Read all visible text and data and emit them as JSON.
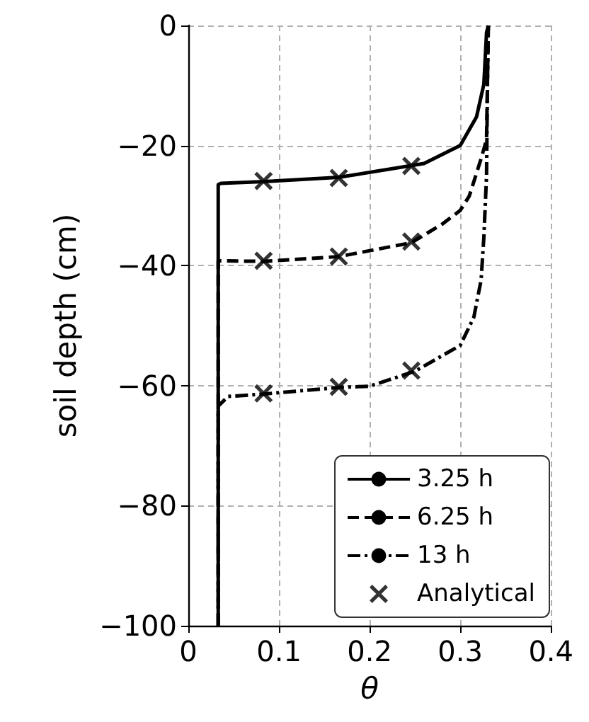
{
  "chart_data": {
    "type": "line",
    "xlabel": "θ",
    "ylabel": "soil depth (cm)",
    "xlim": [
      0,
      0.4
    ],
    "xticks": [
      0,
      0.1,
      0.2,
      0.3,
      0.4
    ],
    "ylim": [
      -100,
      0
    ],
    "yticks": [
      {
        "value": -100,
        "label": "−100"
      },
      {
        "value": -80,
        "label": "−80"
      },
      {
        "value": -60,
        "label": "−60"
      },
      {
        "value": -40,
        "label": "−40"
      },
      {
        "value": -20,
        "label": "−20"
      },
      0
    ],
    "grid": true,
    "legend": "bottom right",
    "marker": "none",
    "series": [
      {
        "name": "3.25 h",
        "color": "#000000",
        "line_style": "solid",
        "x": [
          0.033,
          0.033,
          0.036,
          0.084,
          0.166,
          0.26,
          0.3,
          0.318,
          0.326,
          0.329,
          0.331
        ],
        "values": [
          -100,
          -26.5,
          -26.3,
          -26.0,
          -25.3,
          -23.0,
          -20.0,
          -15.2,
          -9.8,
          -1.2,
          0
        ]
      },
      {
        "name": "6.25 h",
        "color": "#000000",
        "line_style": "dashed",
        "x": [
          0.033,
          0.033,
          0.083,
          0.166,
          0.246,
          0.28,
          0.3,
          0.31,
          0.323,
          0.329,
          0.331
        ],
        "values": [
          -100,
          -39.2,
          -39.3,
          -38.5,
          -36.2,
          -33.1,
          -30.8,
          -28.4,
          -22.2,
          -19.0,
          0
        ]
      },
      {
        "name": "13 h",
        "color": "#000000",
        "line_style": "dashdot",
        "x": [
          0.033,
          0.033,
          0.044,
          0.083,
          0.166,
          0.2,
          0.25,
          0.3,
          0.315,
          0.323,
          0.326,
          0.329,
          0.33,
          0.331
        ],
        "values": [
          -100,
          -63.4,
          -61.8,
          -61.4,
          -60.3,
          -60.1,
          -57.6,
          -53.3,
          -48.6,
          -42.4,
          -35.4,
          -25,
          -10,
          0
        ]
      },
      {
        "name": "Analytical",
        "type": "scatter",
        "marker": "cross",
        "color": "#000000",
        "x": [
          0.083,
          0.166,
          0.246,
          0.083,
          0.166,
          0.246,
          0.083,
          0.166,
          0.246
        ],
        "values": [
          -25.9,
          -25.4,
          -23.4,
          -39.2,
          -38.5,
          -36.0,
          -61.3,
          -60.2,
          -57.5
        ]
      }
    ]
  }
}
